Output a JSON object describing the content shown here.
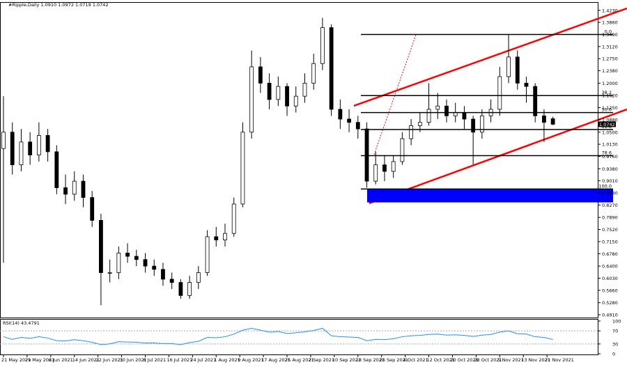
{
  "chart_data": {
    "type": "candlestick",
    "title": "#Ripple,Daily 1.0910 1.0972 1.0719 1.0742",
    "x_labels": [
      "21 May 2021",
      "29 May 2021",
      "6 Jun 2021",
      "14 Jun 2021",
      "22 Jun 2021",
      "30 Jun 2021",
      "8 Jul 2021",
      "16 Jul 2021",
      "24 Jul 2021",
      "1 Aug 2021",
      "9 Aug 2021",
      "17 Aug 2021",
      "25 Aug 2021",
      "2 Sep 2021",
      "10 Sep 2021",
      "18 Sep 2021",
      "26 Sep 2021",
      "4 Oct 2021",
      "12 Oct 2021",
      "20 Oct 2021",
      "28 Oct 2021",
      "5 Nov 2021",
      "13 Nov 2021",
      "21 Nov 2021"
    ],
    "open": [
      1.0,
      1.05,
      0.95,
      1.02,
      0.98,
      1.04,
      0.99,
      0.88,
      0.86,
      0.9,
      0.85,
      0.78,
      0.62,
      0.62,
      0.68,
      0.67,
      0.66,
      0.64,
      0.63,
      0.6,
      0.59,
      0.55,
      0.59,
      0.62,
      0.73,
      0.72,
      0.74,
      0.83,
      1.05,
      1.25,
      1.2,
      1.15,
      1.19,
      1.13,
      1.16,
      1.2,
      1.26,
      1.37,
      1.12,
      1.09,
      1.08,
      1.06,
      0.9,
      0.95,
      0.93,
      0.96,
      1.03,
      1.07,
      1.08,
      1.12,
      1.13,
      1.1,
      1.11,
      1.09,
      1.05,
      1.1,
      1.12,
      1.22,
      1.28,
      1.2,
      1.19,
      1.1,
      1.091
    ],
    "high": [
      1.16,
      1.08,
      1.06,
      1.05,
      1.08,
      1.06,
      1.01,
      0.92,
      0.93,
      0.92,
      0.87,
      0.8,
      0.66,
      0.7,
      0.71,
      0.69,
      0.68,
      0.66,
      0.65,
      0.62,
      0.6,
      0.61,
      0.64,
      0.75,
      0.76,
      0.77,
      0.85,
      1.08,
      1.3,
      1.28,
      1.23,
      1.22,
      1.2,
      1.19,
      1.23,
      1.29,
      1.4,
      1.38,
      1.15,
      1.12,
      1.1,
      1.08,
      0.99,
      0.98,
      0.98,
      1.05,
      1.09,
      1.11,
      1.2,
      1.17,
      1.15,
      1.14,
      1.13,
      1.1,
      1.12,
      1.15,
      1.25,
      1.35,
      1.3,
      1.22,
      1.2,
      1.12,
      1.0972
    ],
    "low": [
      0.65,
      0.92,
      0.93,
      0.95,
      0.96,
      0.96,
      0.86,
      0.83,
      0.84,
      0.82,
      0.76,
      0.52,
      0.59,
      0.6,
      0.65,
      0.64,
      0.62,
      0.61,
      0.58,
      0.57,
      0.54,
      0.54,
      0.57,
      0.61,
      0.7,
      0.7,
      0.73,
      0.82,
      1.03,
      1.17,
      1.12,
      1.13,
      1.1,
      1.11,
      1.14,
      1.18,
      1.24,
      1.1,
      1.06,
      1.05,
      1.03,
      0.88,
      0.89,
      0.9,
      0.91,
      0.95,
      1.01,
      1.05,
      1.07,
      1.09,
      1.08,
      1.08,
      1.06,
      0.95,
      1.03,
      1.08,
      1.1,
      1.2,
      1.18,
      1.14,
      1.08,
      1.02,
      1.0719
    ],
    "close": [
      1.05,
      0.95,
      1.02,
      0.98,
      1.04,
      0.99,
      0.88,
      0.86,
      0.9,
      0.85,
      0.78,
      0.62,
      0.62,
      0.68,
      0.67,
      0.66,
      0.64,
      0.63,
      0.6,
      0.59,
      0.55,
      0.59,
      0.62,
      0.73,
      0.72,
      0.74,
      0.83,
      1.05,
      1.25,
      1.2,
      1.15,
      1.19,
      1.13,
      1.16,
      1.2,
      1.26,
      1.37,
      1.12,
      1.09,
      1.08,
      1.06,
      0.9,
      0.95,
      0.93,
      0.96,
      1.03,
      1.07,
      1.08,
      1.12,
      1.13,
      1.1,
      1.11,
      1.09,
      1.05,
      1.1,
      1.12,
      1.22,
      1.28,
      1.2,
      1.19,
      1.1,
      1.08,
      1.0742
    ],
    "ylim": [
      0.4825,
      1.446
    ],
    "yticks": [
      {
        "value": 1.423,
        "label": "1.4230"
      },
      {
        "value": 1.386,
        "label": "1.3860"
      },
      {
        "value": 1.349,
        "label": "1.3490"
      },
      {
        "value": 1.312,
        "label": "1.3120"
      },
      {
        "value": 1.275,
        "label": "1.2750"
      },
      {
        "value": 1.238,
        "label": "1.2380"
      },
      {
        "value": 1.2,
        "label": "1.2000"
      },
      {
        "value": 1.162,
        "label": "1.1620"
      },
      {
        "value": 1.125,
        "label": "1.1250"
      },
      {
        "value": 1.088,
        "label": "1.0880"
      },
      {
        "value": 1.05,
        "label": "1.0500"
      },
      {
        "value": 1.013,
        "label": "1.0130"
      },
      {
        "value": 0.976,
        "label": "0.9760"
      },
      {
        "value": 0.938,
        "label": "0.9380"
      },
      {
        "value": 0.901,
        "label": "0.9010"
      },
      {
        "value": 0.864,
        "label": "0.8640"
      },
      {
        "value": 0.827,
        "label": "0.8270"
      },
      {
        "value": 0.789,
        "label": "0.7890"
      },
      {
        "value": 0.752,
        "label": "0.7520"
      },
      {
        "value": 0.715,
        "label": "0.7150"
      },
      {
        "value": 0.678,
        "label": "0.6780"
      },
      {
        "value": 0.64,
        "label": "0.6400"
      },
      {
        "value": 0.603,
        "label": "0.6030"
      },
      {
        "value": 0.566,
        "label": "0.5660"
      },
      {
        "value": 0.528,
        "label": "0.5280"
      },
      {
        "value": 0.491,
        "label": "0.4910"
      }
    ],
    "current_price": 1.0742,
    "fib_levels": [
      {
        "value": 1.349,
        "label": "0.0"
      },
      {
        "value": 1.162,
        "label": "38.2"
      },
      {
        "value": 1.11,
        "label": "50.0"
      },
      {
        "value": 1.058,
        "label": "61.8"
      },
      {
        "value": 0.978,
        "label": "78.6"
      },
      {
        "value": 0.876,
        "label": "100.0"
      }
    ],
    "zone": [
      0.835,
      0.876
    ],
    "zone_color": "#0000ff",
    "rsi": {
      "title": "RSI(14) 43.4791",
      "ylim": [
        0,
        100
      ],
      "yticks": [
        100,
        70,
        30,
        0
      ],
      "color": "#1e90ff",
      "values": [
        52,
        44,
        50,
        47,
        52,
        48,
        40,
        39,
        43,
        40,
        35,
        28,
        30,
        37,
        36,
        35,
        33,
        33,
        31,
        31,
        28,
        34,
        38,
        50,
        49,
        52,
        60,
        72,
        78,
        72,
        66,
        68,
        62,
        64,
        67,
        71,
        78,
        55,
        52,
        51,
        50,
        40,
        44,
        43,
        46,
        52,
        55,
        56,
        59,
        60,
        57,
        58,
        56,
        53,
        57,
        59,
        66,
        70,
        61,
        60,
        52,
        50,
        43.4791
      ]
    }
  }
}
